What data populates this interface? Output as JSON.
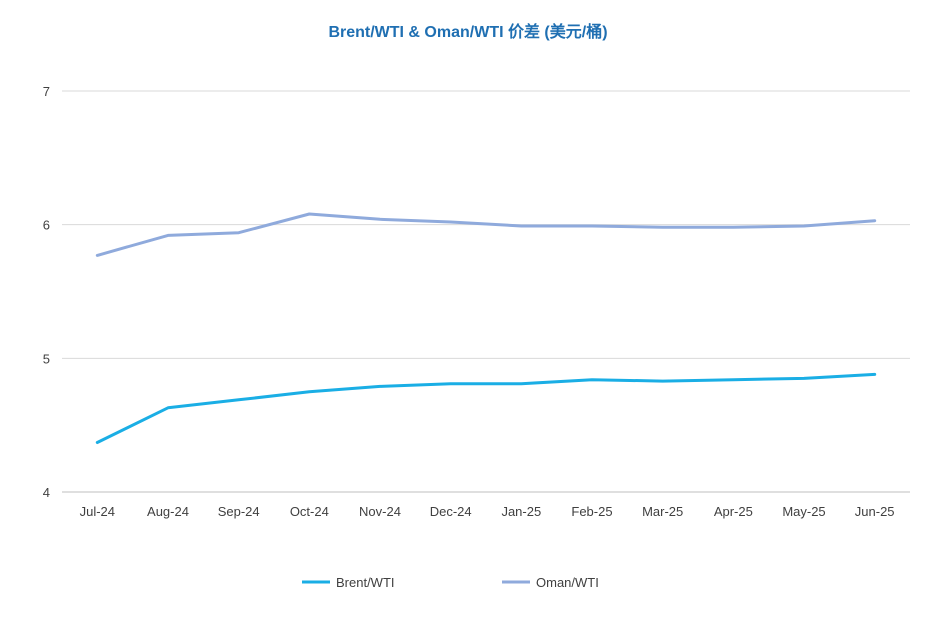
{
  "chart_data": {
    "type": "line",
    "title": "Brent/WTI & Oman/WTI 价差 (美元/桶)",
    "xlabel": "",
    "ylabel": "",
    "categories": [
      "Jul-24",
      "Aug-24",
      "Sep-24",
      "Oct-24",
      "Nov-24",
      "Dec-24",
      "Jan-25",
      "Feb-25",
      "Mar-25",
      "Apr-25",
      "May-25",
      "Jun-25"
    ],
    "ylim": [
      4,
      7
    ],
    "yticks": [
      4,
      5,
      6,
      7
    ],
    "grid": true,
    "legend_position": "bottom",
    "series": [
      {
        "name": "Brent/WTI",
        "color": "#1aaee5",
        "values": [
          4.37,
          4.63,
          4.69,
          4.75,
          4.79,
          4.81,
          4.81,
          4.84,
          4.83,
          4.84,
          4.85,
          4.88
        ]
      },
      {
        "name": "Oman/WTI",
        "color": "#8faadc",
        "values": [
          5.77,
          5.92,
          5.94,
          6.08,
          6.04,
          6.02,
          5.99,
          5.99,
          5.98,
          5.98,
          5.99,
          6.03
        ]
      }
    ]
  }
}
